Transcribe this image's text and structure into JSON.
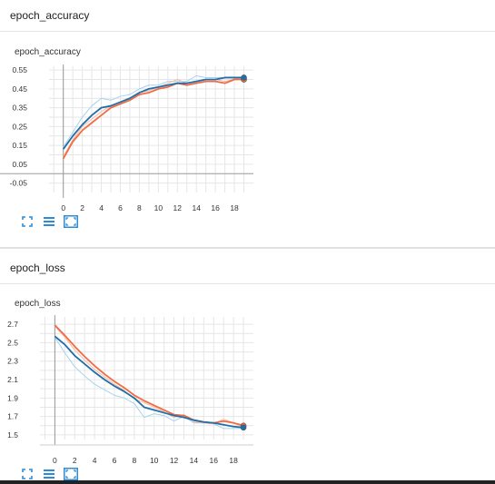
{
  "sections": [
    {
      "header": "epoch_accuracy",
      "card_title": "epoch_accuracy",
      "toolbar": [
        "fit-domain-icon",
        "data-table-icon",
        "expand-icon"
      ]
    },
    {
      "header": "epoch_loss",
      "card_title": "epoch_loss",
      "toolbar": [
        "fit-domain-icon",
        "data-table-icon",
        "expand-icon"
      ]
    }
  ],
  "colors": {
    "train": "#f26b43",
    "validation": "#1f6fa8",
    "train_raw": "#f7b8a3",
    "validation_raw": "#a6d3ef",
    "icon": "#2e8bd6"
  },
  "chart_data": [
    {
      "type": "line",
      "title": "epoch_accuracy",
      "x_ticks": [
        0,
        2,
        4,
        6,
        8,
        10,
        12,
        14,
        16,
        18
      ],
      "y_ticks": [
        "0.55",
        "0.45",
        "0.35",
        "0.25",
        "0.15",
        "0.05",
        "-0.05"
      ],
      "xlim": [
        -1.5,
        20
      ],
      "ylim": [
        -0.1,
        0.57
      ],
      "grid": true,
      "series": [
        {
          "role": "train",
          "x": [
            0,
            1,
            2,
            3,
            4,
            5,
            6,
            7,
            8,
            9,
            10,
            11,
            12,
            13,
            14,
            15,
            16,
            17,
            18,
            19
          ],
          "y": [
            0.08,
            0.17,
            0.23,
            0.27,
            0.31,
            0.35,
            0.37,
            0.39,
            0.42,
            0.43,
            0.45,
            0.46,
            0.48,
            0.47,
            0.48,
            0.49,
            0.49,
            0.48,
            0.5,
            0.5
          ]
        },
        {
          "role": "validation",
          "x": [
            0,
            1,
            2,
            3,
            4,
            5,
            6,
            7,
            8,
            9,
            10,
            11,
            12,
            13,
            14,
            15,
            16,
            17,
            18,
            19
          ],
          "y": [
            0.13,
            0.2,
            0.26,
            0.31,
            0.35,
            0.36,
            0.38,
            0.4,
            0.43,
            0.45,
            0.46,
            0.47,
            0.48,
            0.48,
            0.49,
            0.5,
            0.5,
            0.51,
            0.51,
            0.51
          ]
        },
        {
          "role": "validation_raw",
          "x": [
            0,
            1,
            2,
            3,
            4,
            5,
            6,
            7,
            8,
            9,
            10,
            11,
            12,
            13,
            14,
            15,
            16,
            17,
            18,
            19
          ],
          "y": [
            0.14,
            0.22,
            0.3,
            0.36,
            0.4,
            0.39,
            0.41,
            0.42,
            0.45,
            0.47,
            0.47,
            0.49,
            0.49,
            0.49,
            0.52,
            0.51,
            0.51,
            0.51,
            0.51,
            0.51
          ]
        },
        {
          "role": "train_raw",
          "x": [
            0,
            1,
            2,
            3,
            4,
            5,
            6,
            7,
            8,
            9,
            10,
            11,
            12,
            13,
            14,
            15,
            16,
            17,
            18,
            19
          ],
          "y": [
            0.09,
            0.18,
            0.25,
            0.29,
            0.33,
            0.36,
            0.38,
            0.4,
            0.43,
            0.44,
            0.46,
            0.48,
            0.5,
            0.48,
            0.49,
            0.5,
            0.5,
            0.49,
            0.5,
            0.5
          ]
        }
      ]
    },
    {
      "type": "line",
      "title": "epoch_loss",
      "x_ticks": [
        0,
        2,
        4,
        6,
        8,
        10,
        12,
        14,
        16,
        18
      ],
      "y_ticks": [
        "2.7",
        "2.5",
        "2.3",
        "2.1",
        "1.9",
        "1.7",
        "1.5"
      ],
      "xlim": [
        -1.5,
        20
      ],
      "ylim": [
        1.45,
        2.78
      ],
      "grid": true,
      "series": [
        {
          "role": "train",
          "x": [
            0,
            1,
            2,
            3,
            4,
            5,
            6,
            7,
            8,
            9,
            10,
            11,
            12,
            13,
            14,
            15,
            16,
            17,
            18,
            19
          ],
          "y": [
            2.69,
            2.58,
            2.46,
            2.35,
            2.25,
            2.16,
            2.08,
            2.01,
            1.93,
            1.87,
            1.82,
            1.77,
            1.72,
            1.71,
            1.66,
            1.64,
            1.63,
            1.65,
            1.63,
            1.6
          ]
        },
        {
          "role": "validation",
          "x": [
            0,
            1,
            2,
            3,
            4,
            5,
            6,
            7,
            8,
            9,
            10,
            11,
            12,
            13,
            14,
            15,
            16,
            17,
            18,
            19
          ],
          "y": [
            2.57,
            2.48,
            2.36,
            2.27,
            2.18,
            2.1,
            2.03,
            1.97,
            1.9,
            1.8,
            1.77,
            1.74,
            1.71,
            1.69,
            1.66,
            1.64,
            1.63,
            1.61,
            1.59,
            1.58
          ]
        },
        {
          "role": "validation_raw",
          "x": [
            0,
            1,
            2,
            3,
            4,
            5,
            6,
            7,
            8,
            9,
            10,
            11,
            12,
            13,
            14,
            15,
            16,
            17,
            18,
            19
          ],
          "y": [
            2.56,
            2.39,
            2.24,
            2.14,
            2.05,
            1.99,
            1.93,
            1.9,
            1.84,
            1.69,
            1.73,
            1.71,
            1.65,
            1.7,
            1.63,
            1.63,
            1.62,
            1.57,
            1.57,
            1.57
          ]
        },
        {
          "role": "train_raw",
          "x": [
            0,
            1,
            2,
            3,
            4,
            5,
            6,
            7,
            8,
            9,
            10,
            11,
            12,
            13,
            14,
            15,
            16,
            17,
            18,
            19
          ],
          "y": [
            2.68,
            2.56,
            2.42,
            2.31,
            2.21,
            2.13,
            2.05,
            1.98,
            1.89,
            1.85,
            1.8,
            1.75,
            1.69,
            1.72,
            1.64,
            1.63,
            1.62,
            1.67,
            1.63,
            1.59
          ]
        }
      ]
    }
  ]
}
